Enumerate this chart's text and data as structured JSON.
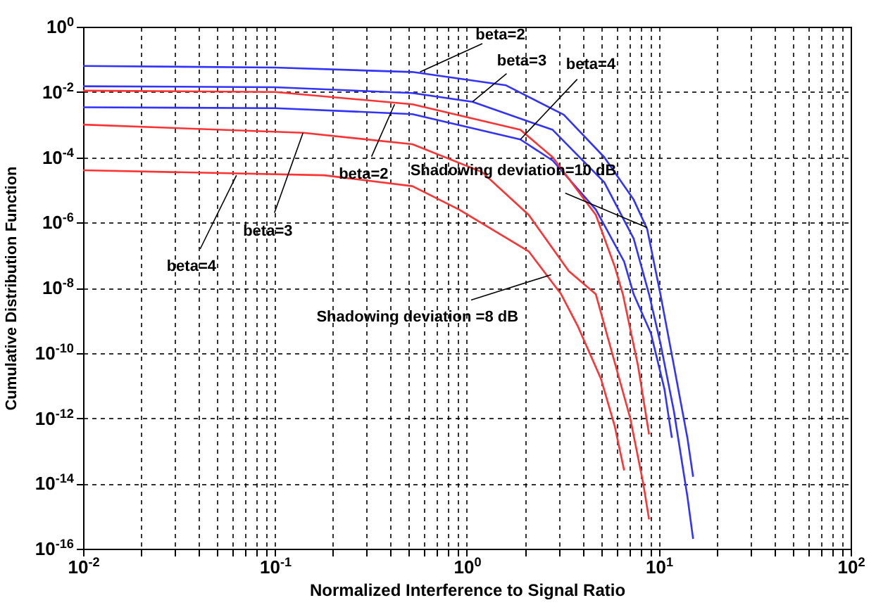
{
  "chart_data": {
    "type": "line",
    "xlabel": "Normalized Interference to Signal Ratio",
    "ylabel": "Cumulative Distribution Function",
    "log": "xy",
    "grid": true,
    "marker": "none",
    "line_style": "solid",
    "xlim": [
      0.01,
      100
    ],
    "ylim": [
      1e-16,
      1
    ],
    "xticks": [
      {
        "value": 0.01,
        "label": "10$^{-2}$"
      },
      {
        "value": 0.02,
        "label": null
      },
      {
        "value": 0.03,
        "label": null
      },
      {
        "value": 0.04,
        "label": null
      },
      {
        "value": 0.05,
        "label": null
      },
      {
        "value": 0.06,
        "label": null
      },
      {
        "value": 0.07,
        "label": null
      },
      {
        "value": 0.08,
        "label": null
      },
      {
        "value": 0.09,
        "label": null
      },
      {
        "value": 0.1,
        "label": "10$^{-1}$"
      },
      {
        "value": 0.2,
        "label": null
      },
      {
        "value": 0.3,
        "label": null
      },
      {
        "value": 0.4,
        "label": null
      },
      {
        "value": 0.5,
        "label": null
      },
      {
        "value": 0.6,
        "label": null
      },
      {
        "value": 0.7,
        "label": null
      },
      {
        "value": 0.8,
        "label": null
      },
      {
        "value": 0.9,
        "label": null
      },
      {
        "value": 1,
        "label": "10$^{0}$"
      },
      {
        "value": 2,
        "label": null
      },
      {
        "value": 3,
        "label": null
      },
      {
        "value": 4,
        "label": null
      },
      {
        "value": 5,
        "label": null
      },
      {
        "value": 6,
        "label": null
      },
      {
        "value": 7,
        "label": null
      },
      {
        "value": 8,
        "label": null
      },
      {
        "value": 9,
        "label": null
      },
      {
        "value": 10,
        "label": "10$^{1}$"
      },
      {
        "value": 20,
        "label": null
      },
      {
        "value": 30,
        "label": null
      },
      {
        "value": 40,
        "label": null
      },
      {
        "value": 50,
        "label": null
      },
      {
        "value": 60,
        "label": null
      },
      {
        "value": 70,
        "label": null
      },
      {
        "value": 80,
        "label": null
      },
      {
        "value": 90,
        "label": null
      },
      {
        "value": 100,
        "label": "10$^{2}$"
      }
    ],
    "yticks": [
      {
        "value": 1e-16,
        "label": "10$^{-16}$"
      },
      {
        "value": 1e-14,
        "label": "10$^{-14}$"
      },
      {
        "value": 1e-12,
        "label": "10$^{-12}$"
      },
      {
        "value": 1e-10,
        "label": "10$^{-10}$"
      },
      {
        "value": 1e-08,
        "label": "10$^{-8}$"
      },
      {
        "value": 1e-06,
        "label": "10$^{-6}$"
      },
      {
        "value": 0.0001,
        "label": "10$^{-4}$"
      },
      {
        "value": 0.01,
        "label": "10$^{-2}$"
      },
      {
        "value": 1,
        "label": "10$^{0}$"
      }
    ],
    "series": [
      {
        "color": "#3333ff",
        "x": [
          0.01,
          0.1,
          0.52,
          1.6,
          3.2,
          5.2,
          7.4,
          8.7,
          10.2,
          12,
          14.1,
          15.1
        ],
        "values": [
          0.063,
          0.056,
          0.041,
          0.016,
          0.002,
          0.0001,
          5e-06,
          6.3e-07,
          6.3e-09,
          4e-11,
          2.5e-13,
          1.6e-14
        ]
      },
      {
        "color": "#3333ff",
        "x": [
          0.01,
          0.1,
          0.52,
          1.07,
          2.8,
          5.2,
          7.4,
          8.9,
          10.2,
          12,
          14.1,
          15.1
        ],
        "values": [
          0.015,
          0.014,
          0.0093,
          0.005,
          0.00069,
          1.7e-05,
          3.2e-07,
          6.3e-09,
          2e-10,
          1.6e-12,
          4e-15,
          2e-16
        ]
      },
      {
        "color": "#3333ff",
        "x": [
          0.01,
          0.1,
          0.52,
          1.9,
          2.8,
          4.7,
          6.6,
          7.4,
          9.1,
          10.7,
          11.7
        ],
        "values": [
          0.0034,
          0.0032,
          0.0021,
          0.00035,
          7.9e-05,
          2.5e-06,
          6.3e-08,
          6.3e-09,
          4e-10,
          7.9e-12,
          2.5e-13
        ]
      },
      {
        "color": "#ff3333",
        "x": [
          0.01,
          0.1,
          0.52,
          1.9,
          2.8,
          4.7,
          5.9,
          6.5,
          7.8,
          8.9
        ],
        "values": [
          0.011,
          0.01,
          0.0042,
          0.00069,
          0.0001,
          1.7e-06,
          4.4e-08,
          6.3e-09,
          4e-11,
          3.2e-13
        ]
      },
      {
        "color": "#ff3333",
        "x": [
          0.01,
          0.14,
          0.52,
          1.2,
          2.1,
          3.4,
          4.7,
          5.9,
          7.1,
          8.3,
          8.9
        ],
        "values": [
          0.001,
          0.00056,
          0.00025,
          3.5e-05,
          1.7e-06,
          3.2e-08,
          6.3e-09,
          5e-11,
          1e-12,
          1e-14,
          7.9e-16
        ]
      },
      {
        "color": "#ff3333",
        "x": [
          0.01,
          0.18,
          0.52,
          0.91,
          2.1,
          3.1,
          3.8,
          5.0,
          5.9,
          6.6
        ],
        "values": [
          4e-05,
          2.8e-05,
          1.3e-05,
          2.5e-06,
          1.3e-07,
          6.3e-09,
          6.3e-10,
          1.6e-11,
          5.6e-13,
          2.5e-14
        ]
      }
    ],
    "annotations": [
      {
        "text": "beta=2",
        "x": 0.57,
        "y": 0.041
      },
      {
        "text": "beta=3",
        "x": 1.07,
        "y": 0.005
      },
      {
        "text": "beta=4",
        "x": 1.9,
        "y": 0.00035
      },
      {
        "text": "beta=2",
        "x": 0.42,
        "y": 0.0042
      },
      {
        "text": "beta=3",
        "x": 0.14,
        "y": 0.00056
      },
      {
        "text": "beta=4",
        "x": 0.063,
        "y": 2.8e-05
      },
      {
        "text": "Shadowing deviation=10 dB",
        "x": 8.7,
        "y": 7e-07
      },
      {
        "text": "Shadowing deviation =8 dB",
        "x": 2.75,
        "y": 2.5e-08
      }
    ]
  }
}
